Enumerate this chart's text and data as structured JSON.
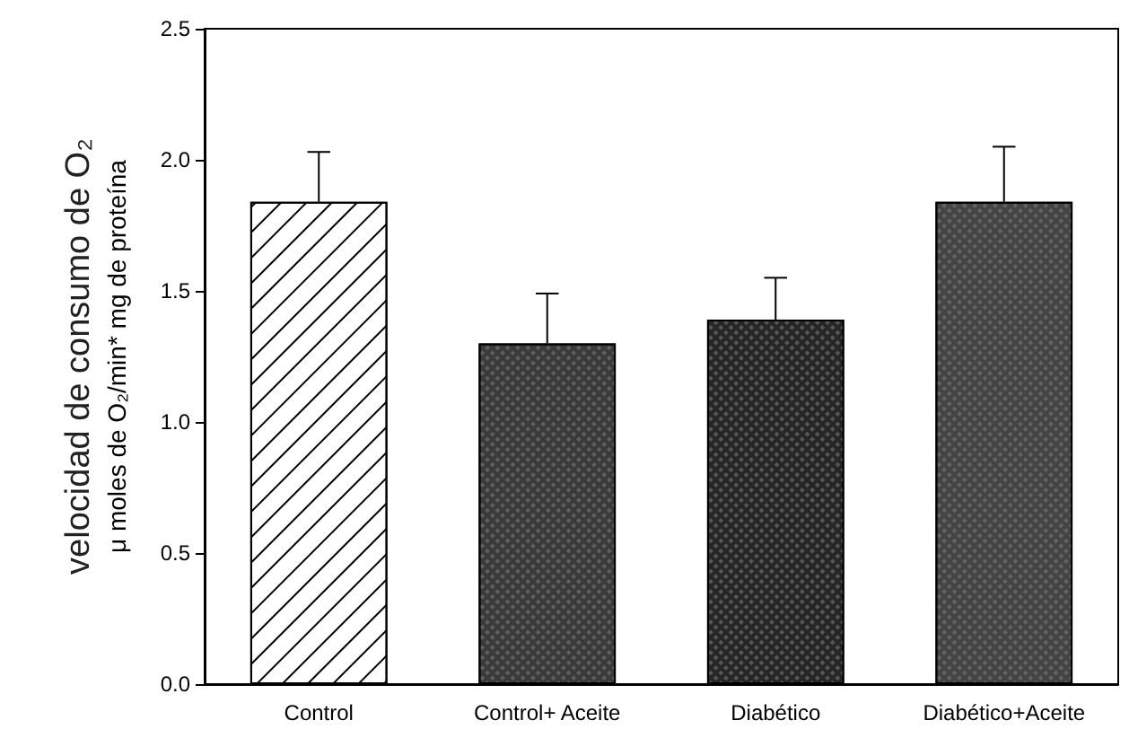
{
  "chart_data": {
    "type": "bar",
    "ylabel": "velocidad de consumo de O₂\nμ moles de O₂/min* mg de proteína",
    "categories": [
      "Control",
      "Control+ Aceite",
      "Diabético",
      "Diabético+Aceite"
    ],
    "values": [
      1.84,
      1.3,
      1.39,
      1.84
    ],
    "colors": [
      "#ffffff",
      "#3a3a3a",
      "#262626",
      "#444444"
    ],
    "errors": [
      [
        1.84,
        2.03
      ],
      [
        1.3,
        1.49
      ],
      [
        1.39,
        1.55
      ],
      [
        1.84,
        2.05
      ]
    ],
    "ylim": [
      0,
      2.5
    ],
    "yticks": [
      {
        "value": 0,
        "label": "0.0"
      },
      0.5,
      {
        "value": 1,
        "label": "1.0"
      },
      1.5,
      {
        "value": 2,
        "label": "2.0"
      },
      2.5
    ],
    "grid": false
  }
}
